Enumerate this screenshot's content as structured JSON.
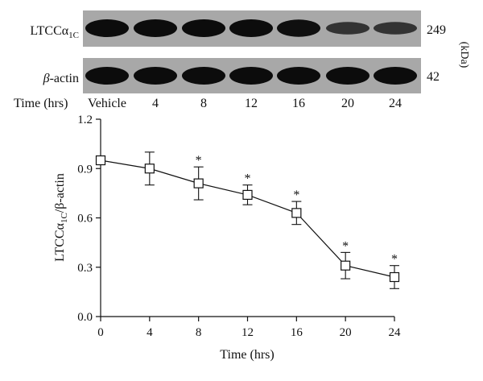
{
  "blot": {
    "lanes": [
      "Vehicle",
      "4",
      "8",
      "12",
      "16",
      "20",
      "24"
    ],
    "time_axis_label": "Time (hrs)",
    "unit_label": "(kDa)",
    "rows": [
      {
        "protein_main": "LTCCα",
        "protein_sub": "1C",
        "protein_suffix": "",
        "kda": "249",
        "intensity": [
          1.0,
          1.0,
          1.0,
          1.0,
          0.95,
          0.45,
          0.45
        ]
      },
      {
        "protein_main": "β",
        "protein_sub": "",
        "protein_suffix": "-actin",
        "kda": "42",
        "intensity": [
          1.0,
          1.0,
          1.0,
          1.0,
          1.0,
          1.0,
          1.0
        ]
      }
    ]
  },
  "chart_data": {
    "type": "line",
    "x": [
      0,
      4,
      8,
      12,
      16,
      20,
      24
    ],
    "series": [
      {
        "values": [
          0.95,
          0.9,
          0.81,
          0.74,
          0.63,
          0.31,
          0.24
        ],
        "error": [
          0.0,
          0.1,
          0.1,
          0.06,
          0.07,
          0.08,
          0.07
        ],
        "significance": [
          "",
          "",
          "*",
          "*",
          "*",
          "*",
          "*"
        ],
        "marker": "open-square"
      }
    ],
    "xlabel": "Time (hrs)",
    "ylabel": {
      "main": "LTCCα",
      "sub": "1C",
      "rest": "/β-actin"
    },
    "xlim": [
      0,
      24
    ],
    "ylim": [
      0,
      1.2
    ],
    "xticks": [
      "0",
      "4",
      "8",
      "12",
      "16",
      "20",
      "24"
    ],
    "yticks": [
      "0.0",
      "0.3",
      "0.6",
      "0.9",
      "1.2"
    ],
    "grid": false,
    "line_color": "#111111"
  }
}
